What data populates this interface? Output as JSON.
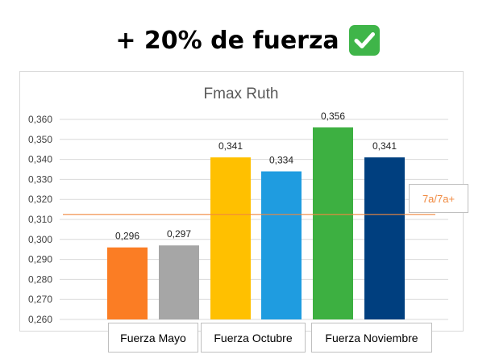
{
  "headline": {
    "text": "+ 20% de fuerza",
    "badge_icon": "check-mark-button-icon",
    "badge_color": "#3fb549"
  },
  "chart_data": {
    "type": "bar",
    "title": "Fmax Ruth",
    "ylim": [
      0.26,
      0.36
    ],
    "y_ticks": [
      "0,260",
      "0,270",
      "0,280",
      "0,290",
      "0,300",
      "0,310",
      "0,320",
      "0,330",
      "0,340",
      "0,350",
      "0,360"
    ],
    "grid": true,
    "bars": [
      {
        "value": 0.296,
        "label": "0,296",
        "color": "#fb7d24"
      },
      {
        "value": 0.297,
        "label": "0,297",
        "color": "#a6a6a6"
      },
      {
        "value": 0.341,
        "label": "0,341",
        "color": "#ffc000"
      },
      {
        "value": 0.334,
        "label": "0,334",
        "color": "#1f9ce0"
      },
      {
        "value": 0.356,
        "label": "0,356",
        "color": "#3db041"
      },
      {
        "value": 0.341,
        "label": "0,341",
        "color": "#003f7f"
      }
    ],
    "groups": [
      {
        "label": "Fuerza Mayo"
      },
      {
        "label": "Fuerza Octubre"
      },
      {
        "label": "Fuerza Noviembre"
      }
    ],
    "reference_line": {
      "value": 0.3125,
      "label": "7a/7a+",
      "color": "#f0883e"
    }
  }
}
